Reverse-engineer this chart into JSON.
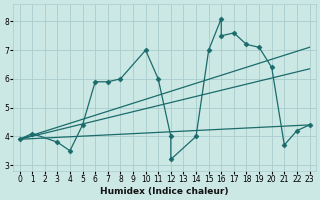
{
  "xlabel": "Humidex (Indice chaleur)",
  "bg_color": "#cce8e5",
  "grid_color": "#aacccc",
  "line_color": "#1a6b6b",
  "xlim": [
    -0.5,
    23.5
  ],
  "ylim": [
    2.8,
    8.6
  ],
  "xticks": [
    0,
    1,
    2,
    3,
    4,
    5,
    6,
    7,
    8,
    9,
    10,
    11,
    12,
    13,
    14,
    15,
    16,
    17,
    18,
    19,
    20,
    21,
    22,
    23
  ],
  "yticks": [
    3,
    4,
    5,
    6,
    7,
    8
  ],
  "lines": [
    {
      "x": [
        0,
        1,
        3,
        4,
        5,
        6,
        7,
        8,
        10,
        11,
        12,
        12,
        14,
        15,
        16,
        16,
        17,
        18,
        19,
        20,
        21,
        22,
        23
      ],
      "y": [
        3.9,
        4.1,
        3.8,
        3.5,
        4.4,
        5.9,
        5.9,
        6.0,
        7.0,
        6.0,
        4.0,
        3.2,
        4.0,
        7.0,
        8.1,
        7.5,
        7.6,
        7.2,
        7.1,
        6.4,
        3.7,
        4.2,
        4.4
      ],
      "marker": "D",
      "markersize": 2.5,
      "lw": 0.9
    },
    {
      "x": [
        0,
        23
      ],
      "y": [
        3.9,
        7.1
      ],
      "marker": null,
      "markersize": 0,
      "lw": 0.9
    },
    {
      "x": [
        0,
        23
      ],
      "y": [
        3.9,
        6.35
      ],
      "marker": null,
      "markersize": 0,
      "lw": 0.9
    },
    {
      "x": [
        0,
        23
      ],
      "y": [
        3.9,
        4.4
      ],
      "marker": null,
      "markersize": 0,
      "lw": 0.9
    }
  ]
}
